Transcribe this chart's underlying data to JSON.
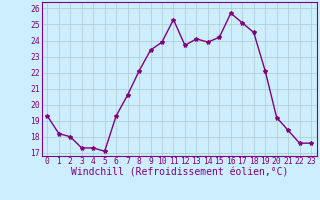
{
  "x": [
    0,
    1,
    2,
    3,
    4,
    5,
    6,
    7,
    8,
    9,
    10,
    11,
    12,
    13,
    14,
    15,
    16,
    17,
    18,
    19,
    20,
    21,
    22,
    23
  ],
  "y": [
    19.3,
    18.2,
    18.0,
    17.3,
    17.3,
    17.1,
    19.3,
    20.6,
    22.1,
    23.4,
    23.9,
    25.3,
    23.7,
    24.1,
    23.9,
    24.2,
    25.7,
    25.1,
    24.5,
    22.1,
    19.2,
    18.4,
    17.6,
    17.6
  ],
  "line_color": "#800080",
  "marker": "*",
  "marker_color": "#800080",
  "bg_color": "#cceeff",
  "grid_color": "#aacccc",
  "xlabel": "Windchill (Refroidissement éolien,°C)",
  "ylabel_ticks": [
    17,
    18,
    19,
    20,
    21,
    22,
    23,
    24,
    25,
    26
  ],
  "xlim": [
    -0.5,
    23.5
  ],
  "ylim": [
    16.8,
    26.4
  ],
  "xticks": [
    0,
    1,
    2,
    3,
    4,
    5,
    6,
    7,
    8,
    9,
    10,
    11,
    12,
    13,
    14,
    15,
    16,
    17,
    18,
    19,
    20,
    21,
    22,
    23
  ],
  "tick_label_fontsize": 5.8,
  "xlabel_fontsize": 7.0,
  "line_width": 1.0,
  "marker_size": 3.0
}
